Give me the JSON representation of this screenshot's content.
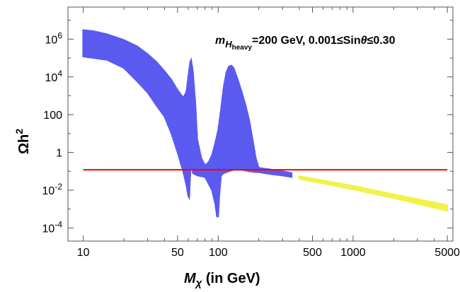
{
  "chart_data": {
    "type": "scatter",
    "title": "",
    "annotation": {
      "prefix": "m",
      "sub1": "H",
      "sub2": "heavy",
      "rest_a": "=200 GeV, 0.001≤Sin",
      "theta": "θ",
      "rest_b": "≤0.30"
    },
    "xlabel": {
      "main": "M",
      "sub": "χ",
      "rest": " (in GeV)"
    },
    "ylabel": {
      "main": "Ωh",
      "sup": "2"
    },
    "xscale": "log",
    "yscale": "log",
    "xlim": [
      7.7,
      5500
    ],
    "ylim": [
      2e-05,
      50000000
    ],
    "x_ticks": [
      {
        "value": 10,
        "label": "10"
      },
      {
        "value": 50,
        "label": "50"
      },
      {
        "value": 100,
        "label": "100"
      },
      {
        "value": 500,
        "label": "500"
      },
      {
        "value": 1000,
        "label": "1000"
      },
      {
        "value": 5000,
        "label": "5000"
      }
    ],
    "y_ticks": [
      {
        "value": 0.0001,
        "base": "10",
        "exp": "-4"
      },
      {
        "value": 0.01,
        "base": "10",
        "exp": "-2"
      },
      {
        "value": 1,
        "base": "1",
        "exp": ""
      },
      {
        "value": 100,
        "base": "100",
        "exp": ""
      },
      {
        "value": 10000,
        "base": "10",
        "exp": "4"
      },
      {
        "value": 1000000,
        "base": "10",
        "exp": "6"
      }
    ],
    "reference_line": {
      "y": 0.12,
      "color": "#ff0000"
    },
    "colors": {
      "blue": "#5b5bf0",
      "yellow": "#f2f24a"
    },
    "series": [
      {
        "name": "blue scan region",
        "color": "#5b5bf0",
        "upper": [
          [
            10,
            3000000
          ],
          [
            12,
            2600000
          ],
          [
            15,
            1800000
          ],
          [
            20,
            900000
          ],
          [
            25,
            420000
          ],
          [
            30,
            160000
          ],
          [
            35,
            60000
          ],
          [
            40,
            20000
          ],
          [
            45,
            7000
          ],
          [
            50,
            2000
          ],
          [
            55,
            800
          ],
          [
            58,
            1500
          ],
          [
            60,
            10000
          ],
          [
            62,
            60000
          ],
          [
            63,
            80000
          ],
          [
            65,
            20000
          ],
          [
            68,
            300
          ],
          [
            70,
            5
          ],
          [
            75,
            0.5
          ],
          [
            80,
            0.2
          ],
          [
            85,
            0.3
          ],
          [
            90,
            0.7
          ],
          [
            95,
            3
          ],
          [
            100,
            15
          ],
          [
            105,
            200
          ],
          [
            110,
            3000
          ],
          [
            115,
            17000
          ],
          [
            120,
            35000
          ],
          [
            125,
            40000
          ],
          [
            130,
            30000
          ],
          [
            140,
            7000
          ],
          [
            150,
            1500
          ],
          [
            160,
            300
          ],
          [
            170,
            50
          ],
          [
            180,
            5
          ],
          [
            190,
            0.5
          ],
          [
            200,
            0.15
          ],
          [
            250,
            0.12
          ],
          [
            300,
            0.1
          ],
          [
            350,
            0.08
          ]
        ],
        "lower": [
          [
            10,
            120000
          ],
          [
            15,
            80000
          ],
          [
            20,
            30000
          ],
          [
            25,
            6000
          ],
          [
            30,
            1500
          ],
          [
            35,
            300
          ],
          [
            40,
            80
          ],
          [
            45,
            10
          ],
          [
            50,
            1
          ],
          [
            55,
            0.1
          ],
          [
            58,
            0.02
          ],
          [
            60,
            0.005
          ],
          [
            61,
            0.004
          ],
          [
            62,
            0.05
          ],
          [
            63,
            0.3
          ],
          [
            65,
            0.08
          ],
          [
            70,
            0.06
          ],
          [
            80,
            0.05
          ],
          [
            90,
            0.01
          ],
          [
            95,
            0.002
          ],
          [
            98,
            0.0004
          ],
          [
            100,
            0.0004
          ],
          [
            102,
            0.005
          ],
          [
            105,
            0.06
          ],
          [
            110,
            0.08
          ],
          [
            120,
            0.1
          ],
          [
            130,
            0.12
          ],
          [
            150,
            0.12
          ],
          [
            170,
            0.1
          ],
          [
            190,
            0.09
          ],
          [
            200,
            0.09
          ],
          [
            250,
            0.07
          ],
          [
            300,
            0.06
          ],
          [
            350,
            0.05
          ]
        ]
      },
      {
        "name": "yellow scan region",
        "color": "#f2f24a",
        "upper": [
          [
            400,
            0.055
          ],
          [
            1000,
            0.017
          ],
          [
            2000,
            0.006
          ],
          [
            5000,
            0.0016
          ]
        ],
        "lower": [
          [
            400,
            0.04
          ],
          [
            1000,
            0.011
          ],
          [
            2000,
            0.0038
          ],
          [
            5000,
            0.0008
          ]
        ]
      }
    ]
  }
}
